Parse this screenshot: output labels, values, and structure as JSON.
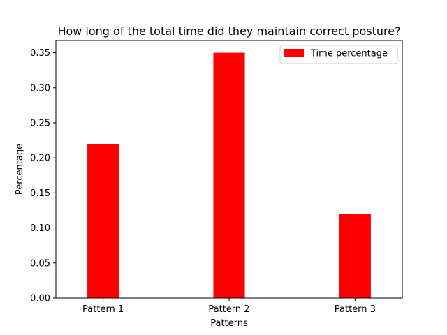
{
  "chart_data": {
    "type": "bar",
    "title": "How long of the total time did they maintain correct posture?",
    "xlabel": "Patterns",
    "ylabel": "Percentage",
    "categories": [
      "Pattern 1",
      "Pattern 2",
      "Pattern 3"
    ],
    "series": [
      {
        "name": "Time percentage",
        "values": [
          0.22,
          0.35,
          0.12
        ],
        "color": "#ff0000"
      }
    ],
    "ylim": [
      0,
      0.3675
    ],
    "yticks": [
      "0.00",
      "0.05",
      "0.10",
      "0.15",
      "0.20",
      "0.25",
      "0.30",
      "0.35"
    ],
    "grid": false,
    "legend_position": "top-right"
  }
}
